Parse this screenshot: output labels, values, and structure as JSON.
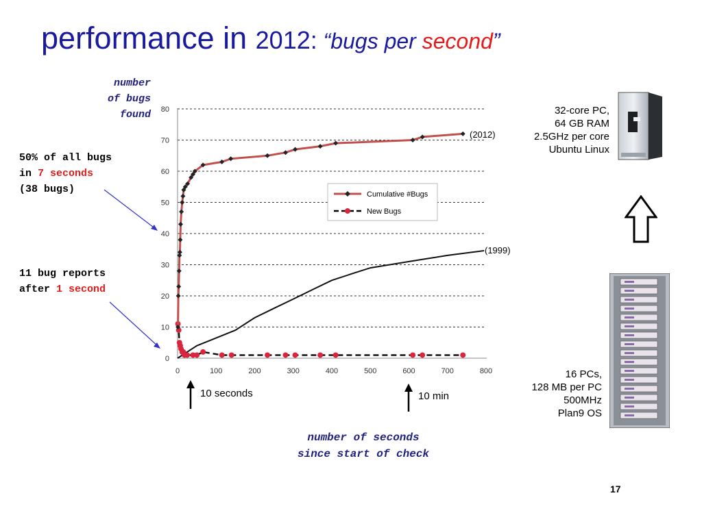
{
  "slide": {
    "title_part1": "performance in ",
    "title_year": "2012:",
    "title_quote_open": " “",
    "title_bugs_per": "bugs per ",
    "title_second": "second",
    "title_quote_close": "”",
    "page_number": "17"
  },
  "axes_text": {
    "ylabel_lines": [
      "number",
      "of bugs",
      "found"
    ],
    "xlabel_lines": [
      "number of seconds",
      "since start of check"
    ]
  },
  "annotations": {
    "fifty_line1": "50% of all bugs",
    "fifty_line2_pre": "in ",
    "fifty_line2_red": "7 seconds",
    "fifty_line3": "(38 bugs)",
    "eleven_line1": "11 bug reports",
    "eleven_line2_pre": " after ",
    "eleven_line2_red": "1 second",
    "label_2012": "(2012)",
    "label_1999": "(1999)",
    "marker_10s": "10 seconds",
    "marker_10min": "10 min"
  },
  "machines": {
    "new_lines": [
      "32-core PC,",
      "64 GB RAM",
      "2.5GHz per core",
      "Ubuntu Linux"
    ],
    "old_lines": [
      "16 PCs,",
      "128 MB per PC",
      "500MHz",
      "Plan9 OS"
    ]
  },
  "colors": {
    "title": "#1a1a9e",
    "accent_red": "#e41b1b",
    "cumulative_line": "#c0504d",
    "new_bugs_marker": "#d9263f",
    "annotation_arrow": "#3333cc"
  },
  "chart_data": {
    "type": "line",
    "xlim": [
      0,
      800
    ],
    "ylim": [
      0,
      80
    ],
    "xticks": [
      0,
      100,
      200,
      300,
      400,
      500,
      600,
      700,
      800
    ],
    "yticks": [
      0,
      10,
      20,
      30,
      40,
      50,
      60,
      70,
      80
    ],
    "grid": true,
    "legend_position": "center-right",
    "series": [
      {
        "name": "Cumulative #Bugs",
        "points": [
          [
            1,
            10
          ],
          [
            2,
            20
          ],
          [
            3,
            23
          ],
          [
            4,
            28
          ],
          [
            5,
            33
          ],
          [
            6,
            34
          ],
          [
            7,
            38
          ],
          [
            8,
            43
          ],
          [
            10,
            47
          ],
          [
            12,
            50
          ],
          [
            14,
            52
          ],
          [
            16,
            54
          ],
          [
            20,
            55
          ],
          [
            26,
            56
          ],
          [
            35,
            58
          ],
          [
            40,
            59
          ],
          [
            45,
            60
          ],
          [
            66,
            62
          ],
          [
            115,
            63
          ],
          [
            138,
            64
          ],
          [
            233,
            65
          ],
          [
            280,
            66
          ],
          [
            305,
            67
          ],
          [
            370,
            68
          ],
          [
            410,
            69
          ],
          [
            610,
            70
          ],
          [
            635,
            71
          ],
          [
            740,
            72
          ]
        ]
      },
      {
        "name": "New Bugs",
        "points": [
          [
            1,
            11
          ],
          [
            3,
            9
          ],
          [
            5,
            5
          ],
          [
            7,
            4
          ],
          [
            9,
            3
          ],
          [
            12,
            2
          ],
          [
            15,
            2
          ],
          [
            18,
            1
          ],
          [
            25,
            1
          ],
          [
            40,
            1
          ],
          [
            50,
            1
          ],
          [
            66,
            2
          ],
          [
            115,
            1
          ],
          [
            140,
            1
          ],
          [
            233,
            1
          ],
          [
            280,
            1
          ],
          [
            305,
            1
          ],
          [
            370,
            1
          ],
          [
            410,
            1
          ],
          [
            610,
            1
          ],
          [
            635,
            1
          ],
          [
            740,
            1
          ]
        ]
      },
      {
        "name": "(1999)",
        "points": [
          [
            0,
            0
          ],
          [
            50,
            4
          ],
          [
            100,
            6.5
          ],
          [
            150,
            9
          ],
          [
            200,
            13
          ],
          [
            250,
            16
          ],
          [
            300,
            19
          ],
          [
            350,
            22
          ],
          [
            400,
            25
          ],
          [
            450,
            27
          ],
          [
            500,
            29
          ],
          [
            550,
            30
          ],
          [
            600,
            31
          ],
          [
            650,
            32
          ],
          [
            700,
            33
          ],
          [
            795,
            34.5
          ]
        ]
      }
    ]
  }
}
